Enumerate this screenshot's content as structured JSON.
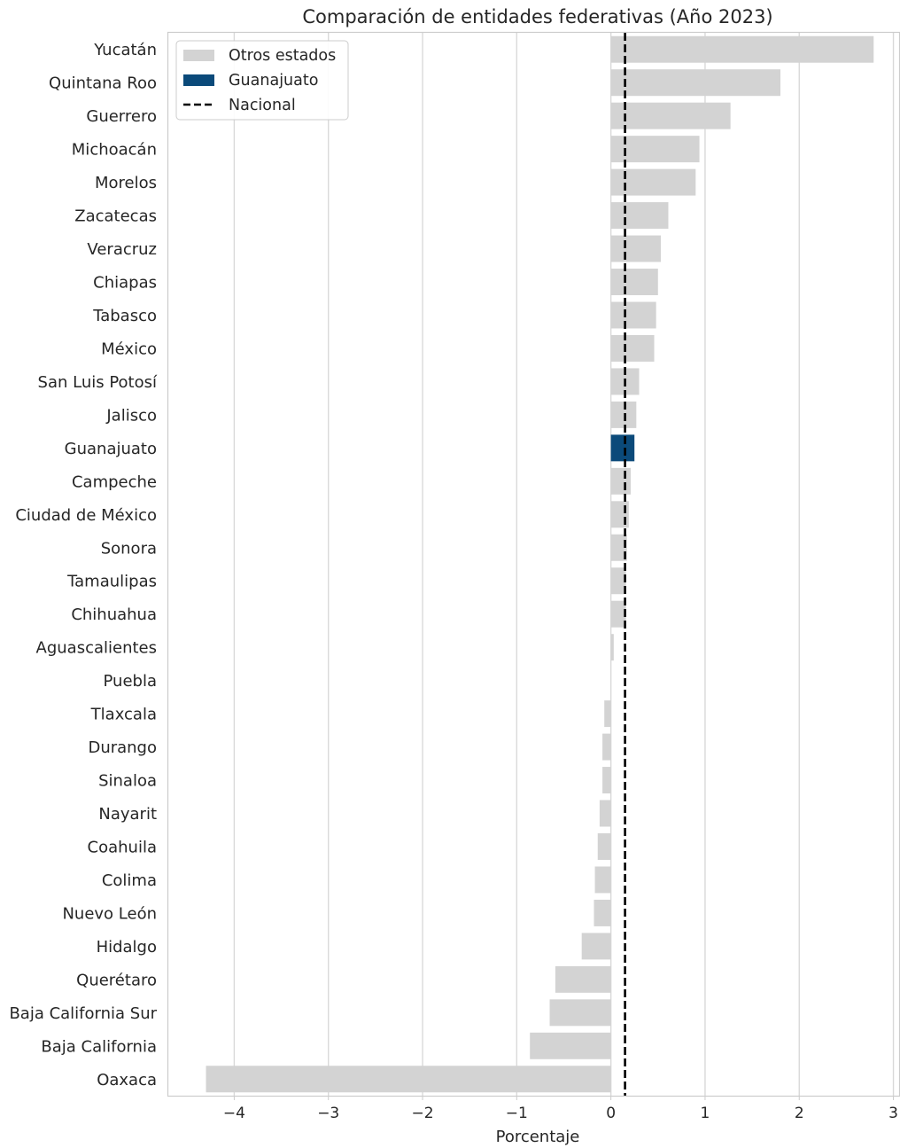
{
  "chart_data": {
    "type": "bar",
    "orientation": "horizontal",
    "title": "Comparación de entidades federativas (Año 2023)",
    "xlabel": "Porcentaje",
    "ylabel": "",
    "xlim": [
      -4.7,
      3.07
    ],
    "xticks": [
      -4,
      -3,
      -2,
      -1,
      0,
      1,
      2,
      3
    ],
    "xtick_labels": [
      "−4",
      "−3",
      "−2",
      "−1",
      "0",
      "1",
      "2",
      "3"
    ],
    "grid": "vertical",
    "legend_position": "top-left",
    "categories": [
      "Yucatán",
      "Quintana Roo",
      "Guerrero",
      "Michoacán",
      "Morelos",
      "Zacatecas",
      "Veracruz",
      "Chiapas",
      "Tabasco",
      "México",
      "San Luis Potosí",
      "Jalisco",
      "Guanajuato",
      "Campeche",
      "Ciudad de México",
      "Sonora",
      "Tamaulipas",
      "Chihuahua",
      "Aguascalientes",
      "Puebla",
      "Tlaxcala",
      "Durango",
      "Sinaloa",
      "Nayarit",
      "Coahuila",
      "Colima",
      "Nuevo León",
      "Hidalgo",
      "Querétaro",
      "Baja California Sur",
      "Baja California",
      "Oaxaca"
    ],
    "values": [
      2.79,
      1.8,
      1.27,
      0.94,
      0.9,
      0.61,
      0.53,
      0.5,
      0.48,
      0.46,
      0.3,
      0.27,
      0.25,
      0.21,
      0.19,
      0.17,
      0.16,
      0.16,
      0.03,
      0.0,
      -0.07,
      -0.09,
      -0.09,
      -0.12,
      -0.14,
      -0.17,
      -0.18,
      -0.31,
      -0.59,
      -0.65,
      -0.86,
      -4.3
    ],
    "highlight": "Guanajuato",
    "national_value": 0.15,
    "colors": {
      "other": "#d3d3d3",
      "highlight": "#0b4a7a",
      "national": "#000000",
      "grid": "#d9d9d9",
      "axis": "#cccccc"
    },
    "legend": [
      "Otros estados",
      "Guanajuato",
      "Nacional"
    ]
  }
}
